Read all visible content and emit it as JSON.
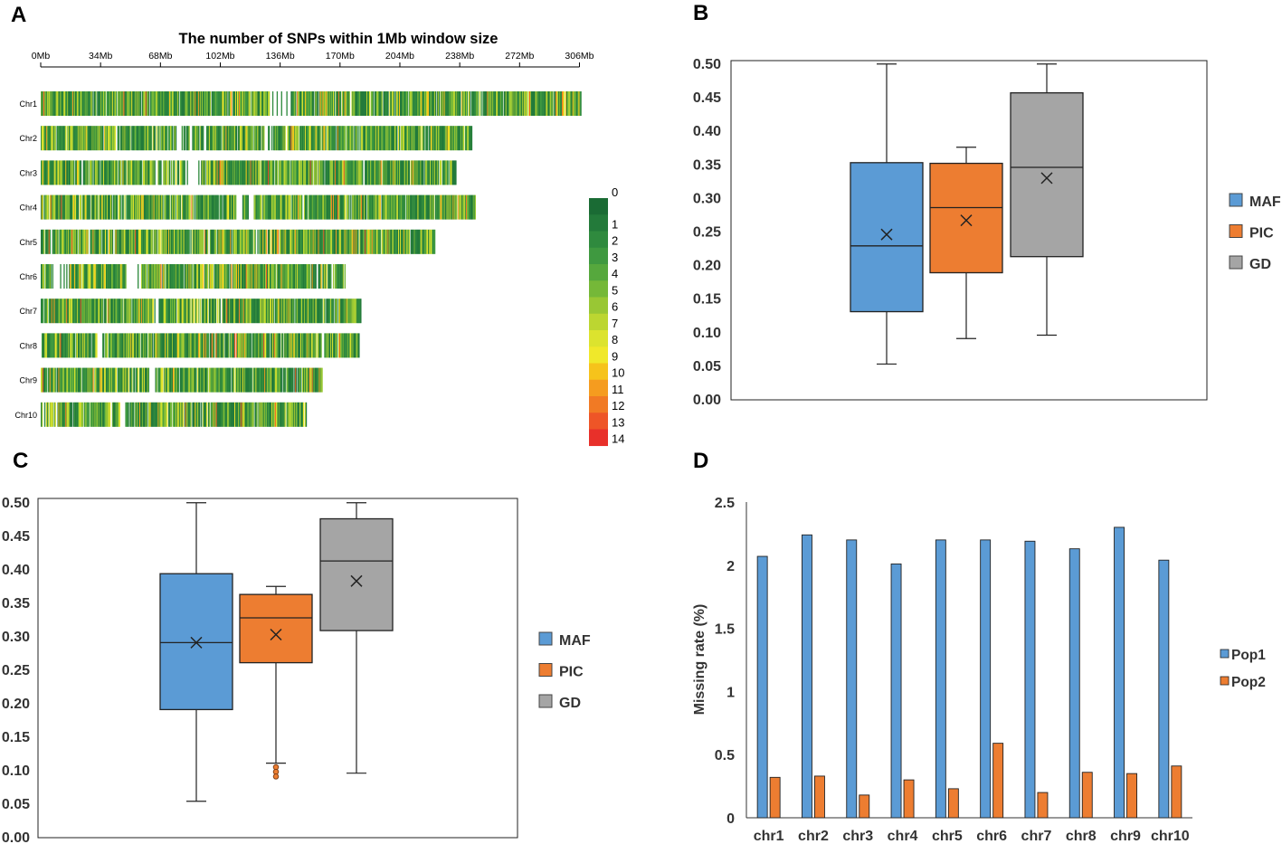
{
  "chart_data": [
    {
      "panel": "A",
      "type": "heatmap",
      "title": "The number of SNPs within 1Mb window size",
      "axis_ticks": [
        "0Mb",
        "34Mb",
        "68Mb",
        "102Mb",
        "136Mb",
        "170Mb",
        "204Mb",
        "238Mb",
        "272Mb",
        "306Mb"
      ],
      "tick_values_mb": [
        0,
        34,
        68,
        102,
        136,
        170,
        204,
        238,
        272,
        306
      ],
      "chromosomes": [
        {
          "name": "Chr1",
          "length_mb": 307,
          "gaps_mb": [
            [
              130,
              142
            ]
          ]
        },
        {
          "name": "Chr2",
          "length_mb": 245,
          "gaps_mb": [
            [
              77,
              80
            ],
            [
              92,
              95
            ],
            [
              127,
              132
            ]
          ]
        },
        {
          "name": "Chr3",
          "length_mb": 236,
          "gaps_mb": [
            [
              82,
              91
            ]
          ]
        },
        {
          "name": "Chr4",
          "length_mb": 247,
          "gaps_mb": [
            [
              111,
              114
            ],
            [
              118,
              121
            ]
          ]
        },
        {
          "name": "Chr5",
          "length_mb": 224,
          "gaps_mb": [
            [
              122,
              124
            ]
          ]
        },
        {
          "name": "Chr6",
          "length_mb": 173,
          "gaps_mb": [
            [
              6,
              16
            ],
            [
              49,
              57
            ]
          ]
        },
        {
          "name": "Chr7",
          "length_mb": 182,
          "gaps_mb": [
            [
              64,
              67
            ]
          ]
        },
        {
          "name": "Chr8",
          "length_mb": 181,
          "gaps_mb": [
            [
              32,
              35
            ]
          ]
        },
        {
          "name": "Chr9",
          "length_mb": 160,
          "gaps_mb": [
            [
              61,
              65
            ]
          ]
        },
        {
          "name": "Chr10",
          "length_mb": 151,
          "gaps_mb": [
            [
              45,
              48
            ]
          ]
        }
      ],
      "legend": [
        "0",
        "1",
        "2",
        "3",
        "4",
        "5",
        "6",
        "7",
        "8",
        "9",
        "10",
        "11",
        "12",
        "13",
        "14"
      ],
      "legend_colors": [
        "#1a6b34",
        "#237a3a",
        "#2f8a3e",
        "#3f9940",
        "#56a83d",
        "#75b838",
        "#99c734",
        "#bcd631",
        "#dce32e",
        "#f0e82a",
        "#f6c31b",
        "#f59c1f",
        "#f17a24",
        "#ee5527",
        "#e8302a"
      ]
    },
    {
      "panel": "B",
      "type": "box",
      "ylim": [
        0,
        0.5
      ],
      "yticks": [
        "0.00",
        "0.05",
        "0.10",
        "0.15",
        "0.20",
        "0.25",
        "0.30",
        "0.35",
        "0.40",
        "0.45",
        "0.50"
      ],
      "series": [
        {
          "name": "MAF",
          "color": "#5b9bd5",
          "min": 0.052,
          "q1": 0.13,
          "median": 0.228,
          "q3": 0.352,
          "max": 0.499,
          "mean": 0.245,
          "outliers": []
        },
        {
          "name": "PIC",
          "color": "#ed7d31",
          "min": 0.09,
          "q1": 0.188,
          "median": 0.285,
          "q3": 0.351,
          "max": 0.375,
          "mean": 0.266,
          "outliers": []
        },
        {
          "name": "GD",
          "color": "#a5a5a5",
          "min": 0.095,
          "q1": 0.212,
          "median": 0.345,
          "q3": 0.456,
          "max": 0.499,
          "mean": 0.329,
          "outliers": []
        }
      ]
    },
    {
      "panel": "C",
      "type": "box",
      "ylim": [
        0,
        0.5
      ],
      "yticks": [
        "0.00",
        "0.05",
        "0.10",
        "0.15",
        "0.20",
        "0.25",
        "0.30",
        "0.35",
        "0.40",
        "0.45",
        "0.50"
      ],
      "series": [
        {
          "name": "MAF",
          "color": "#5b9bd5",
          "min": 0.053,
          "q1": 0.19,
          "median": 0.29,
          "q3": 0.393,
          "max": 0.499,
          "mean": 0.29,
          "outliers": []
        },
        {
          "name": "PIC",
          "color": "#ed7d31",
          "min": 0.11,
          "q1": 0.26,
          "median": 0.327,
          "q3": 0.362,
          "max": 0.374,
          "mean": 0.302,
          "outliers": [
            0.104,
            0.097,
            0.09
          ]
        },
        {
          "name": "GD",
          "color": "#a5a5a5",
          "min": 0.095,
          "q1": 0.308,
          "median": 0.412,
          "q3": 0.475,
          "max": 0.499,
          "mean": 0.382,
          "outliers": []
        }
      ]
    },
    {
      "panel": "D",
      "type": "bar",
      "ylabel": "Missing rate (%)",
      "ylim": [
        0,
        2.5
      ],
      "yticks": [
        "0",
        "0.5",
        "1",
        "1.5",
        "2",
        "2.5"
      ],
      "categories": [
        "chr1",
        "chr2",
        "chr3",
        "chr4",
        "chr5",
        "chr6",
        "chr7",
        "chr8",
        "chr9",
        "chr10"
      ],
      "series": [
        {
          "name": "Pop1",
          "color": "#5b9bd5",
          "values": [
            2.07,
            2.24,
            2.2,
            2.01,
            2.2,
            2.2,
            2.19,
            2.13,
            2.3,
            2.04
          ]
        },
        {
          "name": "Pop2",
          "color": "#ed7d31",
          "values": [
            0.32,
            0.33,
            0.18,
            0.3,
            0.23,
            0.59,
            0.2,
            0.36,
            0.35,
            0.41
          ]
        }
      ]
    }
  ]
}
